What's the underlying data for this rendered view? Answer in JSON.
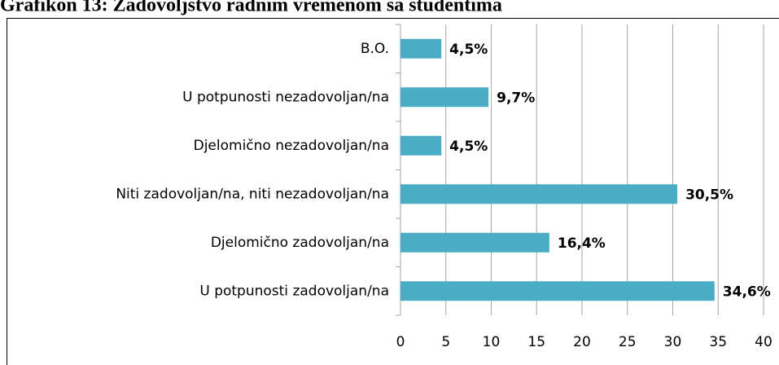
{
  "chart_data": {
    "type": "bar",
    "orientation": "horizontal",
    "title": "Grafikon 13: Zadovoljstvo radnim vremenom sa studentima",
    "categories": [
      "B.O.",
      "U potpunosti nezadovoljan/na",
      "Djelomično nezadovoljan/na",
      "Niti zadovoljan/na, niti nezadovoljan/na",
      "Djelomično zadovoljan/na",
      "U potpunosti zadovoljan/na"
    ],
    "values": [
      4.5,
      9.7,
      4.5,
      30.5,
      16.4,
      34.6
    ],
    "value_labels": [
      "4,5%",
      "9,7%",
      "4,5%",
      "30,5%",
      "16,4%",
      "34,6%"
    ],
    "color": "#4bacc6",
    "xlim": [
      0,
      40
    ],
    "xticks": [
      0,
      5,
      10,
      15,
      20,
      25,
      30,
      35,
      40
    ],
    "grid": true
  }
}
